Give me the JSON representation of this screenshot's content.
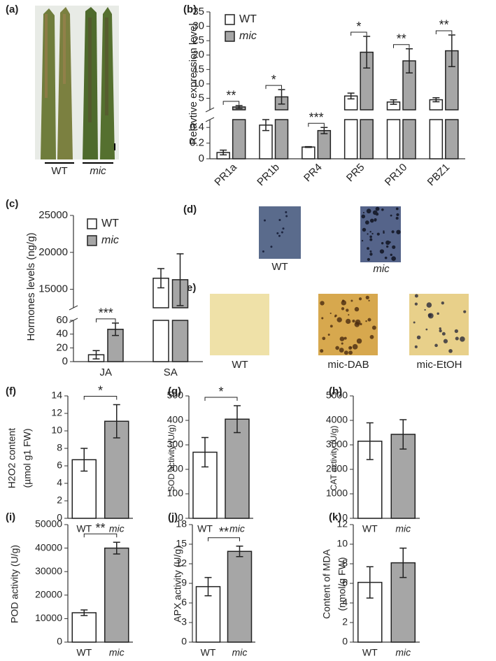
{
  "images": [
    {
      "panel": "(a)",
      "labels": [
        "WT",
        "mic"
      ]
    },
    {
      "panel": "(d)",
      "labels": [
        "WT",
        "mic"
      ]
    },
    {
      "panel": "(e)",
      "labels": [
        "WT",
        "mic-DAB",
        "mic-EtOH"
      ]
    }
  ],
  "chart_data": [
    {
      "panel": "(b)",
      "type": "bar",
      "ylabel": [
        "Relavtive expression level"
      ],
      "categories": [
        "PR1a",
        "PR1b",
        "PR4",
        "PR5",
        "PR10",
        "PBZ1"
      ],
      "series": [
        {
          "name": "WT",
          "color": "#ffffff",
          "values": [
            0.08,
            0.43,
            0.15,
            5.8,
            3.7,
            4.5
          ],
          "errors": [
            0.03,
            0.07,
            0.005,
            1,
            0.8,
            0.7
          ]
        },
        {
          "name": "mic",
          "color": "#a6a6a6",
          "values": [
            2,
            5.5,
            0.36,
            21,
            18,
            21.5
          ],
          "errors": [
            0.5,
            2.5,
            0.04,
            5.5,
            4.2,
            5.5
          ]
        }
      ],
      "significance": [
        "**",
        "*",
        "***",
        "*",
        "**",
        "**"
      ],
      "segments": [
        {
          "ylim": [
            0,
            0.5
          ],
          "yticks": [
            0,
            0.2,
            0.4
          ]
        },
        {
          "ylim": [
            1,
            35
          ],
          "yticks": [
            5,
            10,
            15,
            20,
            25,
            30,
            35
          ]
        }
      ],
      "legend": true
    },
    {
      "panel": "(c)",
      "type": "bar",
      "ylabel": [
        "Hormones levels (ng/g)"
      ],
      "categories": [
        "JA",
        "SA"
      ],
      "series": [
        {
          "name": "WT",
          "color": "#ffffff",
          "values": [
            10,
            16500
          ],
          "errors": [
            6,
            1300
          ]
        },
        {
          "name": "mic",
          "color": "#a6a6a6",
          "values": [
            47,
            16300
          ],
          "errors": [
            9,
            3500
          ]
        }
      ],
      "significance": [
        "***",
        null
      ],
      "segments": [
        {
          "ylim": [
            0,
            60
          ],
          "yticks": [
            0,
            20,
            40,
            60
          ]
        },
        {
          "ylim": [
            12500,
            25000
          ],
          "yticks": [
            15000,
            20000,
            25000
          ]
        }
      ],
      "legend": true
    },
    {
      "panel": "(f)",
      "type": "bar",
      "ylabel": [
        "H2O2 content",
        "(µmol g1 FW)"
      ],
      "categories": [
        "WT",
        "mic"
      ],
      "colors": [
        "#ffffff",
        "#a6a6a6"
      ],
      "values": [
        6.7,
        11.1
      ],
      "errors": [
        1.3,
        1.9
      ],
      "significance": "*",
      "ylim": [
        0,
        14
      ],
      "yticks": [
        0,
        2,
        4,
        6,
        8,
        10,
        12,
        14
      ]
    },
    {
      "panel": "(g)",
      "type": "bar",
      "ylabel": [
        "SOD activity (U/g)"
      ],
      "categories": [
        "WT",
        "mic"
      ],
      "colors": [
        "#ffffff",
        "#a6a6a6"
      ],
      "values": [
        270,
        405
      ],
      "errors": [
        60,
        55
      ],
      "significance": "*",
      "ylim": [
        0,
        500
      ],
      "yticks": [
        0,
        100,
        200,
        300,
        400,
        500
      ]
    },
    {
      "panel": "(h)",
      "type": "bar",
      "ylabel": [
        "CAT activity (U/g)"
      ],
      "categories": [
        "WT",
        "mic"
      ],
      "colors": [
        "#ffffff",
        "#a6a6a6"
      ],
      "values": [
        3150,
        3430
      ],
      "errors": [
        750,
        600
      ],
      "ylim": [
        0,
        5000
      ],
      "yticks": [
        0,
        1000,
        2000,
        3000,
        4000,
        5000
      ]
    },
    {
      "panel": "(i)",
      "type": "bar",
      "ylabel": [
        "POD activity (U/g)"
      ],
      "categories": [
        "WT",
        "mic"
      ],
      "colors": [
        "#ffffff",
        "#a6a6a6"
      ],
      "values": [
        12500,
        40000
      ],
      "errors": [
        1200,
        2500
      ],
      "significance": "**",
      "ylim": [
        0,
        50000
      ],
      "yticks": [
        0,
        10000,
        20000,
        30000,
        40000,
        50000
      ]
    },
    {
      "panel": "(j)",
      "type": "bar",
      "ylabel": [
        "APX activity (U/g)"
      ],
      "categories": [
        "WT",
        "mic"
      ],
      "colors": [
        "#ffffff",
        "#a6a6a6"
      ],
      "values": [
        8.5,
        13.9
      ],
      "errors": [
        1.4,
        0.8
      ],
      "significance": "**",
      "ylim": [
        0,
        18
      ],
      "yticks": [
        0,
        3,
        6,
        9,
        12,
        15,
        18
      ]
    },
    {
      "panel": "(k)",
      "type": "bar",
      "ylabel": [
        "Content of MDA",
        "(nmol/g FW)"
      ],
      "categories": [
        "WT",
        "mic"
      ],
      "colors": [
        "#ffffff",
        "#a6a6a6"
      ],
      "values": [
        6.1,
        8.1
      ],
      "errors": [
        1.6,
        1.5
      ],
      "ylim": [
        0,
        12
      ],
      "yticks": [
        0,
        2,
        4,
        6,
        8,
        10,
        12
      ]
    }
  ]
}
